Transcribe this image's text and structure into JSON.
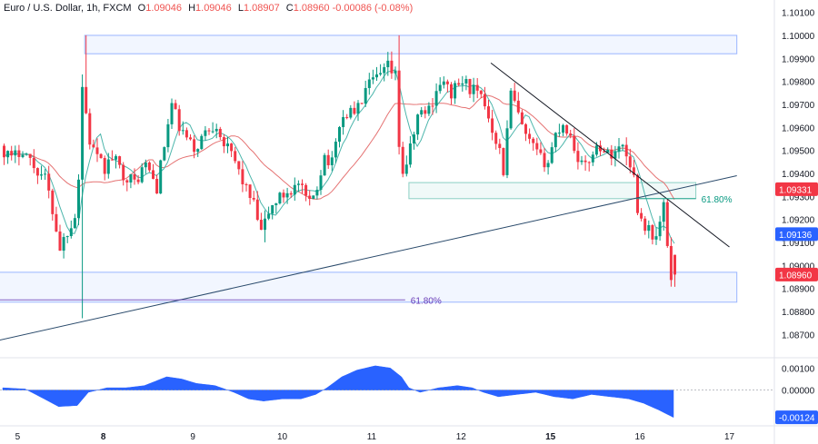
{
  "legend": {
    "symbol": "Euro / U.S. Dollar, 1h, FXCM",
    "open_label": "O",
    "open": "1.09046",
    "high_label": "H",
    "high": "1.09046",
    "low_label": "L",
    "low": "1.08907",
    "close_label": "C",
    "close": "1.08960",
    "change": "-0.00086 (-0.08%)"
  },
  "chart_data": {
    "type": "candlestick",
    "title": "Euro / U.S. Dollar, 1h, FXCM",
    "ylim": [
      1.0863,
      1.1013
    ],
    "y_ticks": [
      "1.10100",
      "1.10000",
      "1.09900",
      "1.09800",
      "1.09700",
      "1.09600",
      "1.09500",
      "1.09400",
      "1.09300",
      "1.09200",
      "1.09100",
      "1.09000",
      "1.08900",
      "1.08800",
      "1.08700"
    ],
    "x_ticks": [
      {
        "label": "5",
        "bold": false,
        "t": 4
      },
      {
        "label": "8",
        "bold": true,
        "t": 27
      },
      {
        "label": "9",
        "bold": false,
        "t": 51
      },
      {
        "label": "10",
        "bold": false,
        "t": 75
      },
      {
        "label": "11",
        "bold": false,
        "t": 99
      },
      {
        "label": "12",
        "bold": false,
        "t": 123
      },
      {
        "label": "15",
        "bold": true,
        "t": 147
      },
      {
        "label": "16",
        "bold": false,
        "t": 171
      },
      {
        "label": "17",
        "bold": false,
        "t": 195
      }
    ],
    "candle_colors": {
      "up": "#089981",
      "down": "#f23645"
    },
    "anchors": [
      [
        0,
        1.0952
      ],
      [
        3,
        1.0946
      ],
      [
        6,
        1.0951
      ],
      [
        9,
        1.0943
      ],
      [
        12,
        1.0938
      ],
      [
        14,
        1.0924
      ],
      [
        16,
        1.0908
      ],
      [
        18,
        1.0915
      ],
      [
        20,
        1.0922
      ],
      [
        21,
        1.0938
      ],
      [
        22,
        1.0978
      ],
      [
        24,
        1.0954
      ],
      [
        26,
        1.0946
      ],
      [
        28,
        1.0942
      ],
      [
        30,
        1.0947
      ],
      [
        33,
        1.094
      ],
      [
        36,
        1.0936
      ],
      [
        39,
        1.0944
      ],
      [
        42,
        1.0934
      ],
      [
        44,
        1.0952
      ],
      [
        46,
        1.097
      ],
      [
        48,
        1.096
      ],
      [
        50,
        1.0955
      ],
      [
        52,
        1.095
      ],
      [
        55,
        1.0958
      ],
      [
        58,
        1.0962
      ],
      [
        60,
        1.0953
      ],
      [
        63,
        1.0945
      ],
      [
        66,
        1.0933
      ],
      [
        68,
        1.0926
      ],
      [
        70,
        1.0914
      ],
      [
        72,
        1.0923
      ],
      [
        74,
        1.0928
      ],
      [
        77,
        1.0932
      ],
      [
        80,
        1.0935
      ],
      [
        83,
        1.0926
      ],
      [
        85,
        1.0935
      ],
      [
        87,
        1.0948
      ],
      [
        89,
        1.0944
      ],
      [
        91,
        1.0962
      ],
      [
        93,
        1.0966
      ],
      [
        96,
        1.0968
      ],
      [
        98,
        1.0976
      ],
      [
        100,
        1.098
      ],
      [
        102,
        1.0982
      ],
      [
        104,
        1.0986
      ],
      [
        106,
        1.0982
      ],
      [
        107,
        1.0953
      ],
      [
        108,
        1.094
      ],
      [
        110,
        1.095
      ],
      [
        112,
        1.0965
      ],
      [
        115,
        1.0968
      ],
      [
        118,
        1.098
      ],
      [
        121,
        1.0975
      ],
      [
        124,
        1.098
      ],
      [
        127,
        1.0976
      ],
      [
        130,
        1.097
      ],
      [
        132,
        1.096
      ],
      [
        134,
        1.095
      ],
      [
        135,
        1.0941
      ],
      [
        137,
        1.0975
      ],
      [
        139,
        1.0965
      ],
      [
        141,
        1.0955
      ],
      [
        143,
        1.0951
      ],
      [
        145,
        1.0946
      ],
      [
        147,
        1.0945
      ],
      [
        149,
        1.0957
      ],
      [
        151,
        1.0962
      ],
      [
        153,
        1.0956
      ],
      [
        155,
        1.0947
      ],
      [
        157,
        1.0942
      ],
      [
        159,
        1.095
      ],
      [
        161,
        1.0952
      ],
      [
        163,
        1.0948
      ],
      [
        165,
        1.095
      ],
      [
        167,
        1.0952
      ],
      [
        169,
        1.0945
      ],
      [
        170,
        1.0938
      ],
      [
        171,
        1.0925
      ],
      [
        172,
        1.092
      ],
      [
        174,
        1.0915
      ],
      [
        176,
        1.0912
      ],
      [
        178,
        1.0925
      ],
      [
        179,
        1.0909
      ],
      [
        180,
        1.0896
      ]
    ],
    "last_candle": {
      "open": 1.09046,
      "high": 1.09046,
      "low": 1.08907,
      "close": 1.0896
    },
    "price_labels": [
      {
        "value": 1.09331,
        "text": "1.09331",
        "color": "#f23645"
      },
      {
        "value": 1.09136,
        "text": "1.09136",
        "color": "#2962ff"
      },
      {
        "value": 1.0896,
        "text": "1.08960",
        "color": "#f23645"
      }
    ],
    "zones": [
      {
        "t0": 22,
        "t1": 197,
        "y0": 1.0992,
        "y1": 1.1,
        "color": "#2962ff"
      },
      {
        "t0": 109,
        "t1": 186,
        "y0": 1.0929,
        "y1": 1.0936,
        "color": "#089981"
      },
      {
        "t0": -5,
        "t1": 197,
        "y0": 1.0884,
        "y1": 1.0897,
        "color": "#2962ff"
      }
    ],
    "fib_lines": [
      {
        "t0": -5,
        "t1": 108,
        "y": 1.0885,
        "label": "61.80%",
        "color": "#673ab7"
      },
      {
        "t0": 170,
        "t1": 186,
        "y": 1.0929,
        "label": "61.80%",
        "color": "#089981"
      }
    ],
    "trendlines": [
      {
        "t0": -5,
        "y0": 1.0866,
        "t1": 197,
        "y1": 1.0939,
        "color": "#2a4a6b"
      },
      {
        "t0": 131,
        "y0": 1.0988,
        "t1": 195,
        "y1": 1.0908,
        "color": "#131722"
      }
    ],
    "oscillator": {
      "ylim": [
        -0.0015,
        0.0013
      ],
      "y_ticks": [
        "0.00100",
        "0.00000"
      ],
      "current": -0.00124,
      "current_label": "-0.00124",
      "color": "#2962ff",
      "anchors": [
        [
          0,
          0.0001
        ],
        [
          6,
          5e-05
        ],
        [
          10,
          -0.0003
        ],
        [
          15,
          -0.00075
        ],
        [
          20,
          -0.0007
        ],
        [
          23,
          -0.0001
        ],
        [
          28,
          0.0001
        ],
        [
          33,
          0.0001
        ],
        [
          38,
          0.0002
        ],
        [
          44,
          0.0006
        ],
        [
          48,
          0.0005
        ],
        [
          52,
          0.0003
        ],
        [
          57,
          0.0002
        ],
        [
          62,
          -0.0001
        ],
        [
          66,
          -0.0004
        ],
        [
          70,
          -0.0005
        ],
        [
          75,
          -0.0004
        ],
        [
          80,
          -0.0004
        ],
        [
          84,
          -0.0002
        ],
        [
          87,
          0.0001
        ],
        [
          91,
          0.0006
        ],
        [
          95,
          0.0009
        ],
        [
          100,
          0.0011
        ],
        [
          104,
          0.001
        ],
        [
          107,
          0.0006
        ],
        [
          109,
          0.0001
        ],
        [
          112,
          -0.0001
        ],
        [
          117,
          0.0001
        ],
        [
          122,
          0.0002
        ],
        [
          126,
          0.0001
        ],
        [
          129,
          -0.0001
        ],
        [
          133,
          -0.0003
        ],
        [
          138,
          -0.0002
        ],
        [
          143,
          -0.0001
        ],
        [
          148,
          -0.0003
        ],
        [
          153,
          -0.0004
        ],
        [
          158,
          -0.0002
        ],
        [
          163,
          -0.0003
        ],
        [
          168,
          -0.0004
        ],
        [
          172,
          -0.0006
        ],
        [
          176,
          -0.0009
        ],
        [
          180,
          -0.00124
        ]
      ]
    }
  }
}
